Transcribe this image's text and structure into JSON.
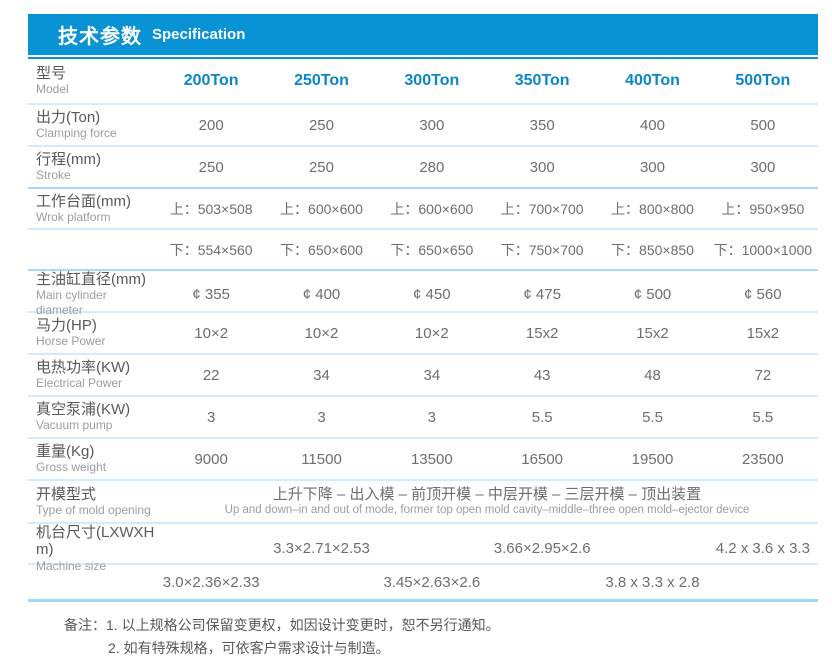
{
  "accent": {
    "header_bg": "#0992d4",
    "column_header_text": "#0b86ca",
    "divider_light": "#d3ecfb",
    "divider_strong": "#a6dbf7"
  },
  "header": {
    "title_zh": "技术参数",
    "title_en": "Specification"
  },
  "table": {
    "model_row": {
      "zh": "型号",
      "en": "Model",
      "values": [
        "200Ton",
        "250Ton",
        "300Ton",
        "350Ton",
        "400Ton",
        "500Ton"
      ]
    },
    "rows": [
      {
        "zh": "出力(Ton)",
        "en": "Clamping force",
        "values": [
          "200",
          "250",
          "300",
          "350",
          "400",
          "500"
        ]
      },
      {
        "zh": "行程(mm)",
        "en": "Stroke",
        "values": [
          "250",
          "250",
          "280",
          "300",
          "300",
          "300"
        ]
      },
      {
        "zh": "工作台面(mm)",
        "en": "Wrok platform",
        "values": [
          "上：503×508",
          "上：600×600",
          "上：600×600",
          "上：700×700",
          "上：800×800",
          "上：950×950"
        ]
      },
      {
        "zh": "",
        "en": "",
        "values": [
          "下：554×560",
          "下：650×600",
          "下：650×650",
          "下：750×700",
          "下：850×850",
          "下：1000×1000"
        ]
      },
      {
        "zh": "主油缸直径(mm)",
        "en": "Main cylinder diameter",
        "values": [
          "¢ 355",
          "¢ 400",
          "¢ 450",
          "¢ 475",
          "¢ 500",
          "¢ 560"
        ]
      },
      {
        "zh": "马力(HP)",
        "en": "Horse Power",
        "values": [
          "10×2",
          "10×2",
          "10×2",
          "15x2",
          "15x2",
          "15x2"
        ]
      },
      {
        "zh": "电热功率(KW)",
        "en": "Electrical Power",
        "values": [
          "22",
          "34",
          "34",
          "43",
          "48",
          "72"
        ]
      },
      {
        "zh": "真空泵浦(KW)",
        "en": "Vacuum pump",
        "values": [
          "3",
          "3",
          "3",
          "5.5",
          "5.5",
          "5.5"
        ]
      },
      {
        "zh": "重量(Kg)",
        "en": "Gross weight",
        "values": [
          "9000",
          "11500",
          "13500",
          "16500",
          "19500",
          "23500"
        ]
      }
    ],
    "mold_opening": {
      "zh": "开模型式",
      "en": "Type of mold opening",
      "text_zh": "上升下降 – 出入模 – 前顶开模 – 中层开模 – 三层开模 – 顶出装置",
      "text_en": "Up and down–in and out of mode, former top open mold cavity–middle–three open mold–ejector device"
    },
    "machine_size": {
      "zh": "机台尺寸(LXWXH m)",
      "en": "Machine size",
      "row1": [
        "3.3×2.71×2.53",
        "3.66×2.95×2.6",
        "4.2 x 3.6 x 3.3"
      ],
      "row2": [
        "3.0×2.36×2.33",
        "3.45×2.63×2.6",
        "3.8 x 3.3 x 2.8"
      ]
    }
  },
  "notes": {
    "label": "备注：",
    "items": [
      "1. 以上规格公司保留变更权，如因设计变更时，恕不另行通知。",
      "2. 如有特殊规格，可依客户需求设计与制造。"
    ]
  }
}
